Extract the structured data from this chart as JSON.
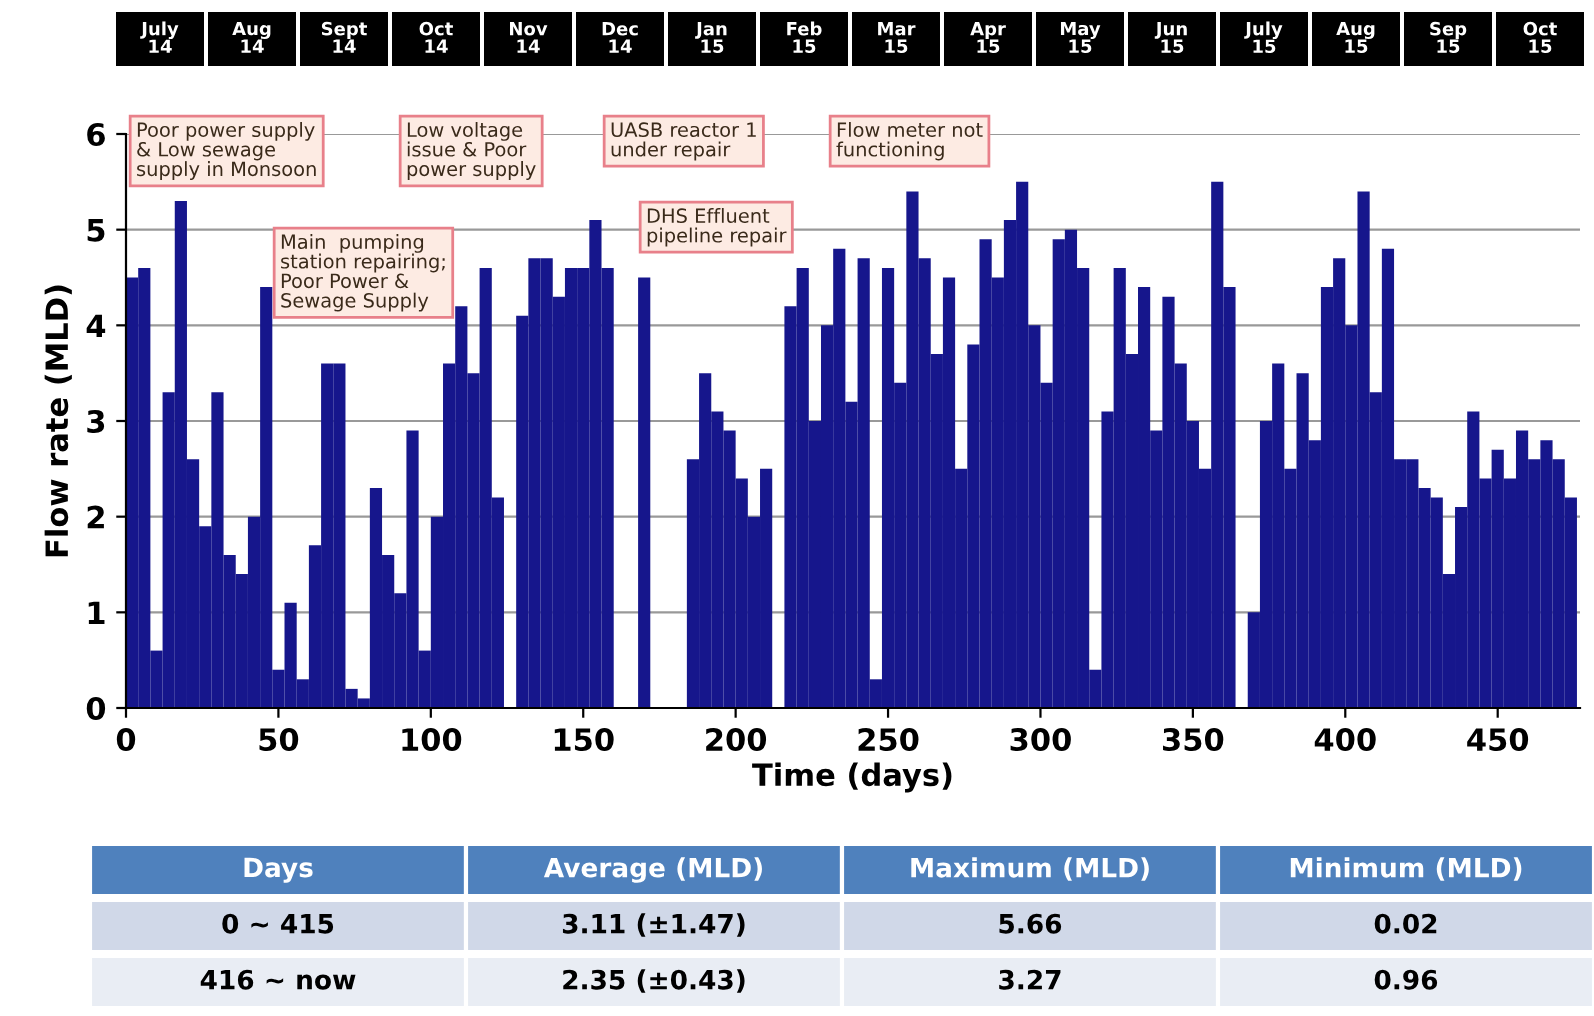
{
  "chart_data": {
    "type": "bar",
    "xlabel": "Time (days)",
    "ylabel": "Flow rate (MLD)",
    "x": [
      0,
      4,
      8,
      12,
      16,
      20,
      24,
      28,
      32,
      36,
      40,
      44,
      48,
      52,
      56,
      60,
      64,
      68,
      72,
      76,
      80,
      84,
      88,
      92,
      96,
      100,
      104,
      108,
      112,
      116,
      120,
      124,
      128,
      132,
      136,
      140,
      144,
      148,
      152,
      156,
      160,
      164,
      168,
      172,
      176,
      180,
      184,
      188,
      192,
      196,
      200,
      204,
      208,
      212,
      216,
      220,
      224,
      228,
      232,
      236,
      240,
      244,
      248,
      252,
      256,
      260,
      264,
      268,
      272,
      276,
      280,
      284,
      288,
      292,
      296,
      300,
      304,
      308,
      312,
      316,
      320,
      324,
      328,
      332,
      336,
      340,
      344,
      348,
      352,
      356,
      360,
      364,
      368,
      372,
      376,
      380,
      384,
      388,
      392,
      396,
      400,
      404,
      408,
      412,
      416,
      420,
      424,
      428,
      432,
      436,
      440,
      444,
      448,
      452,
      456,
      460,
      464,
      468,
      472
    ],
    "series": [
      {
        "color": "#16168c",
        "values": [
          4.5,
          4.6,
          0.6,
          3.3,
          5.3,
          2.6,
          1.9,
          3.3,
          1.6,
          1.4,
          2.0,
          4.4,
          0.4,
          1.1,
          0.3,
          1.7,
          3.6,
          3.6,
          0.2,
          0.1,
          2.3,
          1.6,
          1.2,
          2.9,
          0.6,
          2.0,
          3.6,
          4.2,
          3.5,
          4.6,
          2.2,
          0,
          4.1,
          4.7,
          4.7,
          4.3,
          4.6,
          4.6,
          5.1,
          4.6,
          0,
          0,
          4.5,
          0,
          0,
          0,
          2.6,
          3.5,
          3.1,
          2.9,
          2.4,
          2.0,
          2.5,
          0,
          4.2,
          4.6,
          3.0,
          4.0,
          4.8,
          3.2,
          4.7,
          0.3,
          4.6,
          3.4,
          5.4,
          4.7,
          3.7,
          4.5,
          2.5,
          3.8,
          4.9,
          4.5,
          5.1,
          5.5,
          4.0,
          3.4,
          4.9,
          5.0,
          4.6,
          0.4,
          3.1,
          4.6,
          3.7,
          4.4,
          2.9,
          4.3,
          3.6,
          3.0,
          2.5,
          5.5,
          4.4,
          0,
          1.0,
          3.0,
          3.6,
          2.5,
          3.5,
          2.8,
          4.4,
          4.7,
          4.0,
          5.4,
          3.3,
          4.8,
          2.6,
          2.6,
          2.3,
          2.2,
          1.4,
          2.1,
          3.1,
          2.4,
          2.7,
          2.4,
          2.9,
          2.6,
          2.8,
          2.6,
          2.2
        ]
      }
    ],
    "xlim": [
      0,
      477
    ],
    "xticks": [
      0,
      50,
      100,
      150,
      200,
      250,
      300,
      350,
      400,
      450
    ],
    "ylim": [
      0,
      6
    ],
    "yticks": [
      0,
      1,
      2,
      3,
      4,
      5,
      6
    ],
    "grid": "y",
    "legend": false,
    "annotations": [
      "Poor power supply\n& Low sewage\nsupply in Monsoon",
      "Main  pumping\nstation repairing;\nPoor Power &\nSewage Supply",
      "Low voltage\nissue & Poor\npower supply",
      "UASB reactor 1\nunder repair",
      "DHS Effluent\npipeline repair",
      "Flow meter not\nfunctioning",
      "July\n14",
      "Aug\n14",
      "Sept\n14",
      "Oct\n14",
      "Nov\n14",
      "Dec\n14",
      "Jan\n15",
      "Feb\n15",
      "Mar\n15",
      "Apr\n15",
      "May\n15",
      "Jun\n15",
      "July\n15",
      "Aug\n15",
      "Sep\n15",
      "Oct\n15",
      "Days",
      "Average (MLD)",
      "Maximum (MLD)",
      "Minimum (MLD)",
      "0 ∼ 415",
      "3.11 (±1.47)",
      "5.66",
      "0.02",
      "416 ∼ now",
      "2.35 (±0.43)",
      "3.27",
      "0.96"
    ]
  }
}
